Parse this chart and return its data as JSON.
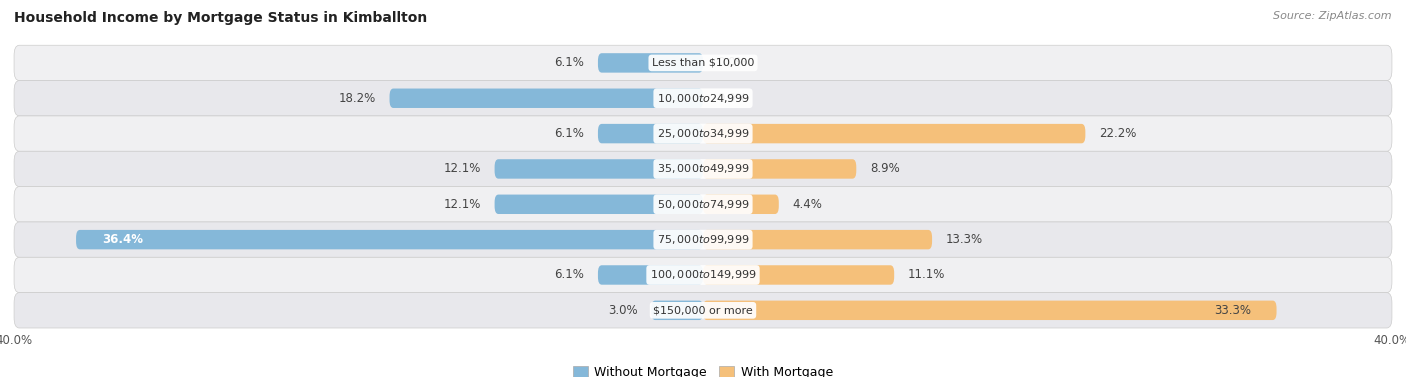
{
  "title": "Household Income by Mortgage Status in Kimballton",
  "source": "Source: ZipAtlas.com",
  "categories": [
    "Less than $10,000",
    "$10,000 to $24,999",
    "$25,000 to $34,999",
    "$35,000 to $49,999",
    "$50,000 to $74,999",
    "$75,000 to $99,999",
    "$100,000 to $149,999",
    "$150,000 or more"
  ],
  "without_mortgage": [
    6.1,
    18.2,
    6.1,
    12.1,
    12.1,
    36.4,
    6.1,
    3.0
  ],
  "with_mortgage": [
    0.0,
    0.0,
    22.2,
    8.9,
    4.4,
    13.3,
    11.1,
    33.3
  ],
  "color_without": "#85b8d9",
  "color_without_dark": "#5a9fc0",
  "color_with": "#f5c07a",
  "color_with_dark": "#e8a850",
  "xlim": [
    -40,
    40
  ],
  "legend_without": "Without Mortgage",
  "legend_with": "With Mortgage",
  "title_fontsize": 10,
  "source_fontsize": 8,
  "label_fontsize": 8.5,
  "cat_fontsize": 8,
  "bar_height": 0.55,
  "row_bg_color_even": "#f0f0f2",
  "row_bg_color_odd": "#e8e8ec"
}
